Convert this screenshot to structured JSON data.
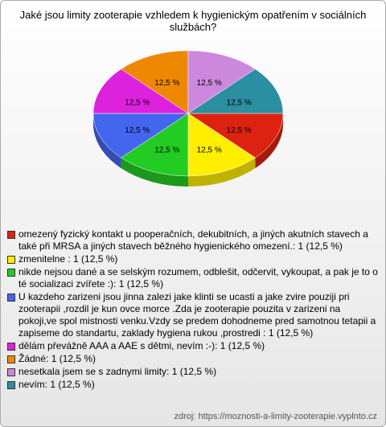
{
  "chart_data": {
    "type": "pie",
    "title": "Jaké jsou limity zooterapie vzhledem k hygienickým opatřením v sociálních službách?",
    "categories": [
      "omezený fyzický kontakt u pooperačních, dekubitních, a jiných akutních stavech a také při MRSA  a jiných stavech běžného hygienického omezení.: 1 (12,5 %)",
      "zmenitelne : 1 (12,5 %)",
      "nikde nejsou dané a se selským rozumem, odblešit, odčervit, vykoupat, a pak je to o té socializaci zvířete :): 1 (12,5 %)",
      "U kazdeho zarizeni jsou jinna zalezi jake klinti se ucasti a jake zvire pouziji pri zooterapii ,rozdil je kun ovce morce .Zda je zooterapie pouzita v zarizeni na pokoji,ve spol mistnosti venku.Vzdy se predem dohodneme pred samotnou tetapii a zapiseme do standartu, zaklady hygiena rukou ,prostredi : 1 (12,5 %)",
      "dělám převážně AAA a AAE s dětmi, nevím :-): 1 (12,5 %)",
      "Žádné: 1 (12,5 %)",
      "nesetkala jsem se s zadnymi limity: 1 (12,5 %)",
      "nevím: 1 (12,5 %)"
    ],
    "values": [
      12.5,
      12.5,
      12.5,
      12.5,
      12.5,
      12.5,
      12.5,
      12.5
    ],
    "value_labels": [
      "12,5 %",
      "12,5 %",
      "12,5 %",
      "12,5 %",
      "12,5 %",
      "12,5 %",
      "12,5 %",
      "12,5 %"
    ],
    "colors": [
      "#dd2211",
      "#ffee00",
      "#22cc22",
      "#4466ee",
      "#dd22dd",
      "#ee8800",
      "#cc88dd",
      "#2a8fa0"
    ],
    "source": "zdroj: https://moznosti-a-limity-zooterapie.vyplnto.cz"
  }
}
